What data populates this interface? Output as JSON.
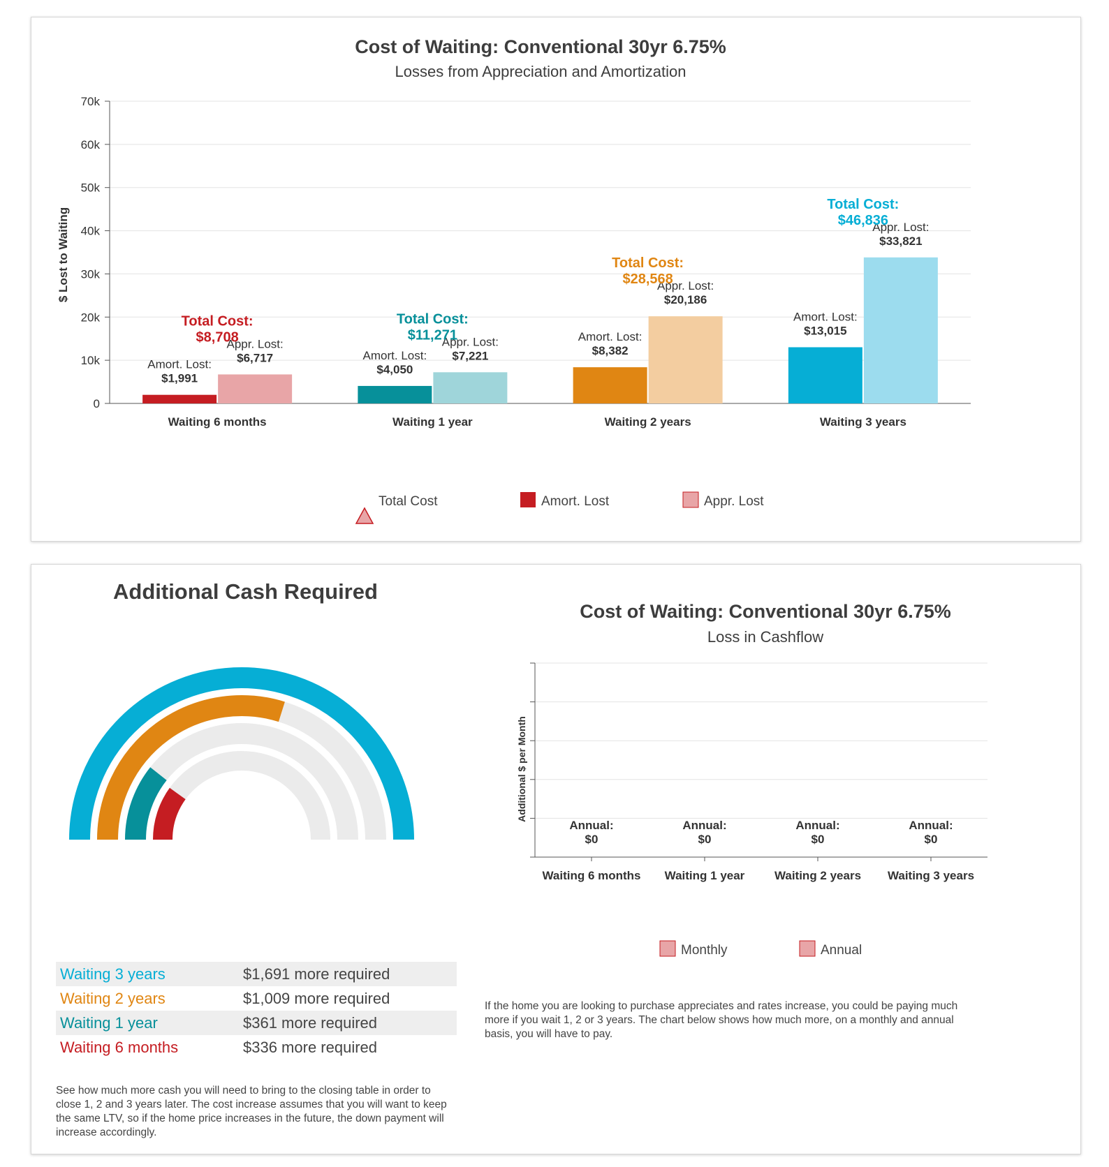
{
  "top_chart": {
    "title": "Cost of Waiting: Conventional 30yr 6.75%",
    "subtitle": "Losses from Appreciation and Amortization",
    "ylabel": "$ Lost to Waiting",
    "amort_label": "Amort. Lost:",
    "appr_label": "Appr. Lost:",
    "total_label": "Total Cost:",
    "legend": [
      "Total Cost",
      "Amort. Lost",
      "Appr. Lost"
    ]
  },
  "cash": {
    "title": "Additional Cash Required",
    "rows": [
      {
        "label": "Waiting 3 years",
        "amount": "$1,691 more required",
        "color": "#06aed5"
      },
      {
        "label": "Waiting 2 years",
        "amount": "$1,009 more required",
        "color": "#e08613"
      },
      {
        "label": "Waiting 1 year",
        "amount": "$361 more required",
        "color": "#07909a"
      },
      {
        "label": "Waiting 6 months",
        "amount": "$336 more required",
        "color": "#c51d22"
      }
    ],
    "note": "See how much more cash you will need to bring to the closing table in order to close 1, 2 and 3 years later. The cost increase assumes that you will want to keep the same LTV, so if the home price increases in the future, the down payment will increase accordingly."
  },
  "cashflow_chart": {
    "title": "Cost of Waiting: Conventional 30yr 6.75%",
    "subtitle": "Loss in Cashflow",
    "ylabel": "Additional $ per Month",
    "annual_label": "Annual:",
    "legend": [
      "Monthly",
      "Annual"
    ],
    "note": "If the home you are looking to purchase appreciates and rates increase, you could be paying much more if you wait 1, 2 or 3 years. The chart below shows how much more, on a monthly and annual basis, you will have to pay."
  },
  "chart_data": [
    {
      "type": "bar",
      "title": "Cost of Waiting: Conventional 30yr 6.75%",
      "subtitle": "Losses from Appreciation and Amortization",
      "ylabel": "$ Lost to Waiting",
      "ylim": [
        0,
        70000
      ],
      "yticks": [
        "0",
        "10k",
        "20k",
        "30k",
        "40k",
        "50k",
        "60k",
        "70k"
      ],
      "grid": true,
      "legend_position": "bottom",
      "categories": [
        "Waiting 6 months",
        "Waiting 1 year",
        "Waiting 2 years",
        "Waiting 3 years"
      ],
      "series": [
        {
          "name": "Amort. Lost",
          "values": [
            1991,
            4050,
            8382,
            13015
          ]
        },
        {
          "name": "Appr. Lost",
          "values": [
            6717,
            7221,
            20186,
            33821
          ]
        }
      ],
      "totals": [
        8708,
        11271,
        28568,
        46836
      ],
      "totals_text": [
        "$8,708",
        "$11,271",
        "$28,568",
        "$46,836"
      ],
      "amort_text": [
        "$1,991",
        "$4,050",
        "$8,382",
        "$13,015"
      ],
      "appr_text": [
        "$6,717",
        "$7,221",
        "$20,186",
        "$33,821"
      ],
      "colors": [
        {
          "dark": "#c51d22",
          "light": "#e8a5a7"
        },
        {
          "dark": "#07909a",
          "light": "#9fd5da"
        },
        {
          "dark": "#e08613",
          "light": "#f3cda0"
        },
        {
          "dark": "#06aed5",
          "light": "#9cdcee"
        }
      ]
    },
    {
      "type": "pie",
      "variant": "radial-semicircle",
      "title": "Additional Cash Required",
      "categories": [
        "Waiting 3 years",
        "Waiting 2 years",
        "Waiting 1 year",
        "Waiting 6 months"
      ],
      "values": [
        1691,
        1009,
        361,
        336
      ],
      "colors": [
        "#06aed5",
        "#e08613",
        "#07909a",
        "#c51d22"
      ]
    },
    {
      "type": "bar",
      "title": "Cost of Waiting: Conventional 30yr 6.75%",
      "subtitle": "Loss in Cashflow",
      "ylabel": "Additional $ per Month",
      "grid": true,
      "legend_position": "bottom",
      "categories": [
        "Waiting 6 months",
        "Waiting 1 year",
        "Waiting 2 years",
        "Waiting 3 years"
      ],
      "series": [
        {
          "name": "Monthly",
          "values": [
            0,
            0,
            0,
            0
          ]
        },
        {
          "name": "Annual",
          "values": [
            0,
            0,
            0,
            0
          ]
        }
      ],
      "annual_text": [
        "$0",
        "$0",
        "$0",
        "$0"
      ]
    }
  ]
}
